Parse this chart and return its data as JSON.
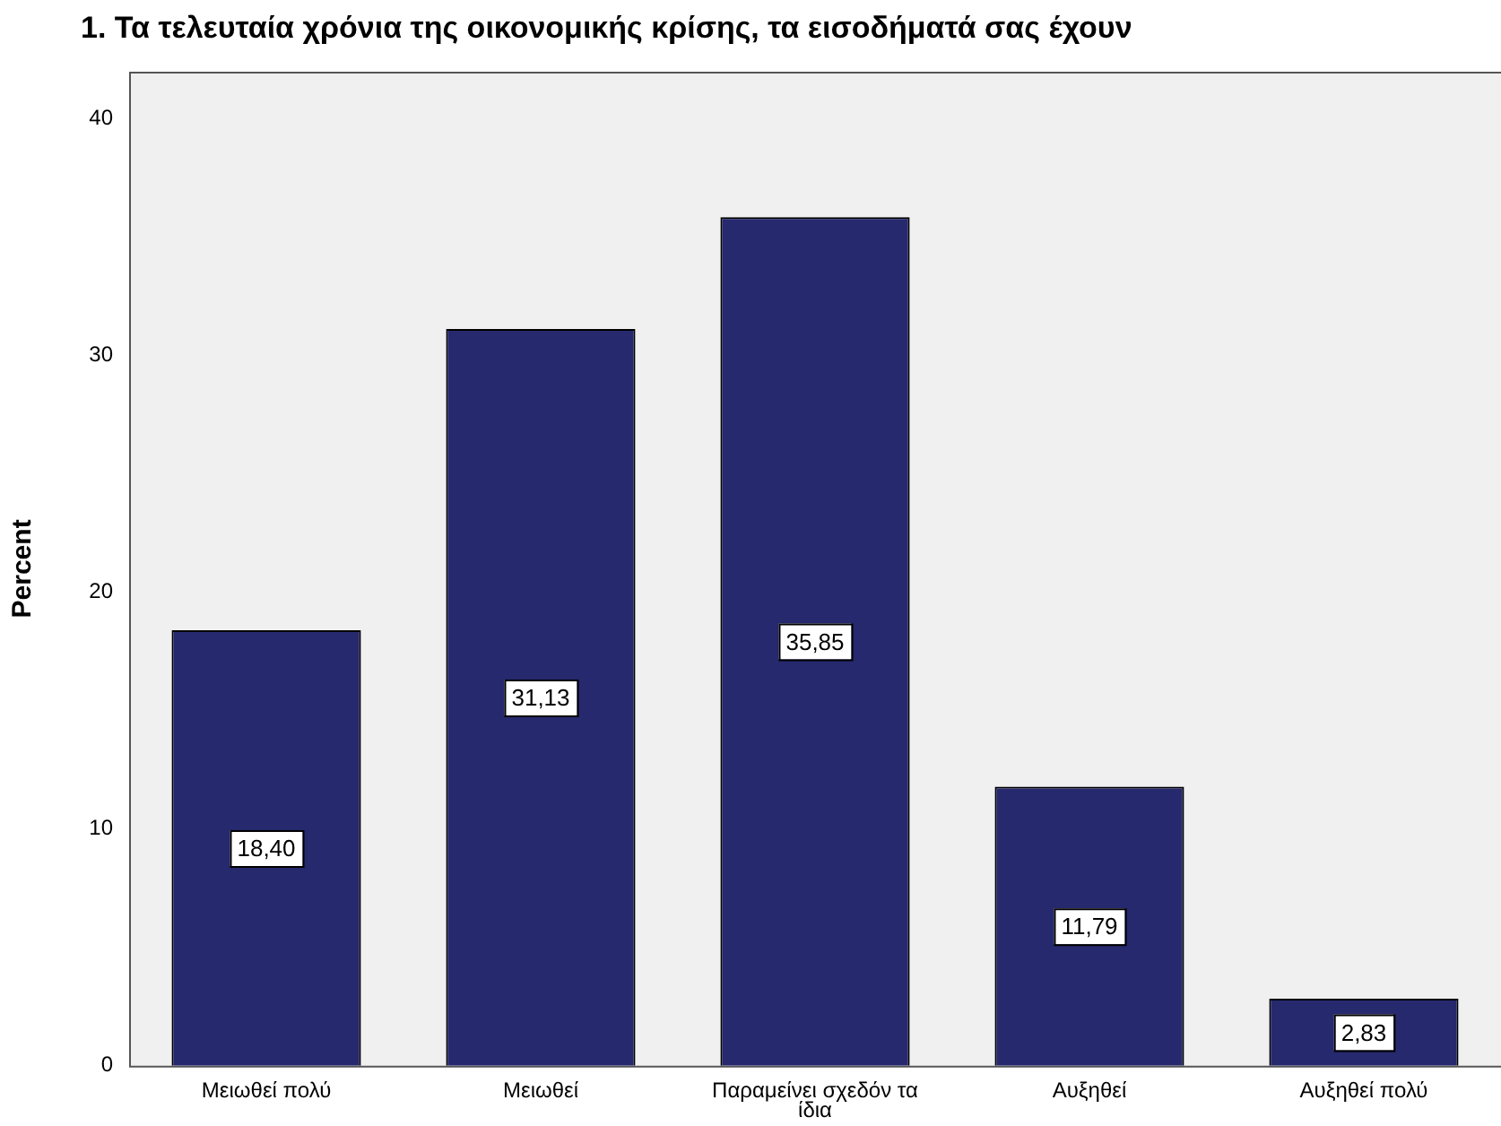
{
  "chart_data": {
    "type": "bar",
    "title": "1. Τα τελευταία χρόνια της οικονομικής κρίσης, τα εισοδήματά σας έχουν",
    "ylabel": "Percent",
    "categories": [
      "Μειωθεί πολύ",
      "Μειωθεί",
      "Παραμείνει σχεδόν τα ίδια",
      "Αυξηθεί",
      "Αυξηθεί πολύ"
    ],
    "values": [
      18.4,
      31.13,
      35.85,
      11.79,
      2.83
    ],
    "value_labels": [
      "18,40",
      "31,13",
      "35,85",
      "11,79",
      "2,83"
    ],
    "color": "#26296e",
    "ylim": [
      0,
      42
    ],
    "yticks": [
      0,
      10,
      20,
      30,
      40
    ],
    "grid": false,
    "legend": false
  }
}
